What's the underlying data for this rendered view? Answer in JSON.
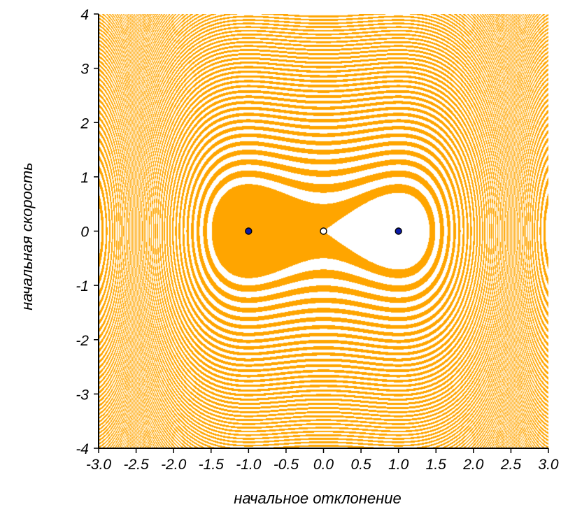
{
  "chart_data": {
    "type": "contour",
    "title": "",
    "xlabel": "начальное отклонение",
    "ylabel": "начальная скорость",
    "xlim": [
      -3.0,
      3.0
    ],
    "ylim": [
      -4,
      4
    ],
    "x_ticks": [
      "-3.0",
      "-2.5",
      "-2.0",
      "-1.5",
      "-1.0",
      "-0.5",
      "0.0",
      "0.5",
      "1.0",
      "1.5",
      "2.0",
      "2.5",
      "3.0"
    ],
    "y_ticks": [
      "-4",
      "-3",
      "-2",
      "-1",
      "0",
      "1",
      "2",
      "3",
      "4"
    ],
    "field": "0.5*v^2 - 0.5*x^2 + 0.25*x^4",
    "band_width": 0.125,
    "separatrix_level": 0,
    "points": [
      {
        "x": -1.0,
        "y": 0,
        "kind": "stable"
      },
      {
        "x": 0.0,
        "y": 0,
        "kind": "unstable"
      },
      {
        "x": 1.0,
        "y": 0,
        "kind": "stable"
      }
    ],
    "colors": {
      "band": "#ffa500",
      "stable": "#0a1aa8",
      "unstable": "#ffffff",
      "background": "#ffffff"
    }
  }
}
